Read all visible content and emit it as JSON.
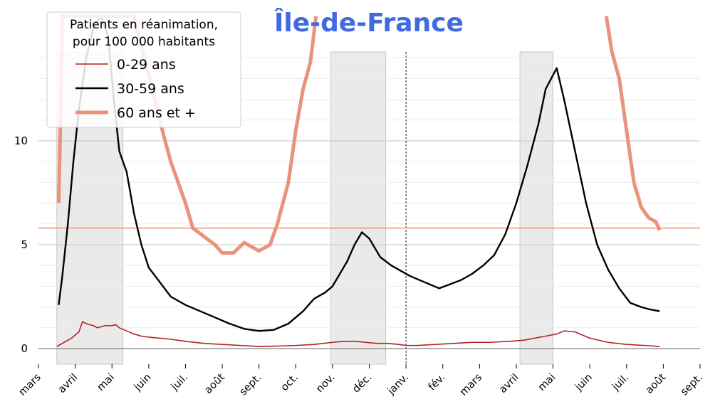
{
  "chart_data": {
    "type": "line",
    "title": "Île-de-France",
    "title_color": "#4169e1",
    "legend": {
      "title": [
        "Patients en réanimation,",
        "pour 100 000 habitants"
      ],
      "placement": "top-left"
    },
    "xlabel": "",
    "ylabel": "",
    "x_unit": "months since 1 March 2020",
    "xlim": [
      0,
      18
    ],
    "ylim": [
      -0.8,
      15
    ],
    "yticks": [
      0,
      5,
      10
    ],
    "x_tick_labels": [
      "mars",
      "avril",
      "mai",
      "juin",
      "juil.",
      "août",
      "sept.",
      "oct.",
      "nov.",
      "déc.",
      "janv.",
      "fév.",
      "mars",
      "avril",
      "mai",
      "juin",
      "juil.",
      "août",
      "sept."
    ],
    "shaded_periods": [
      [
        0.5,
        2.3
      ],
      [
        7.95,
        9.45
      ],
      [
        13.1,
        14.0
      ]
    ],
    "vline_x": 10,
    "hline_y": 5.8,
    "colors": {
      "hline": "#e8937a",
      "shade": "#d9d9d9",
      "vline": "#000000",
      "axis": "#808080"
    },
    "series": [
      {
        "name": "0-29 ans",
        "color": "#b22222",
        "x": [
          0.5,
          0.7,
          0.9,
          1.1,
          1.2,
          1.3,
          1.5,
          1.6,
          1.8,
          2.0,
          2.1,
          2.2,
          2.4,
          2.6,
          2.8,
          3.0,
          3.3,
          3.6,
          4.0,
          4.5,
          5.0,
          5.5,
          6.0,
          6.5,
          7.0,
          7.5,
          8.0,
          8.3,
          8.6,
          8.9,
          9.2,
          9.5,
          9.8,
          10.0,
          10.3,
          10.8,
          11.3,
          11.8,
          12.3,
          12.8,
          13.2,
          13.5,
          13.8,
          14.1,
          14.3,
          14.6,
          15.0,
          15.5,
          16.0,
          16.5,
          16.9
        ],
        "values": [
          0.1,
          0.3,
          0.5,
          0.8,
          1.3,
          1.2,
          1.1,
          1.0,
          1.1,
          1.1,
          1.15,
          1.0,
          0.85,
          0.7,
          0.6,
          0.55,
          0.5,
          0.45,
          0.35,
          0.25,
          0.2,
          0.15,
          0.1,
          0.12,
          0.15,
          0.2,
          0.3,
          0.35,
          0.35,
          0.3,
          0.25,
          0.25,
          0.2,
          0.15,
          0.15,
          0.2,
          0.25,
          0.3,
          0.3,
          0.35,
          0.4,
          0.5,
          0.6,
          0.7,
          0.85,
          0.8,
          0.5,
          0.3,
          0.2,
          0.15,
          0.1
        ]
      },
      {
        "name": "30-59 ans",
        "color": "#000000",
        "x": [
          0.55,
          0.65,
          0.8,
          0.95,
          1.1,
          1.3,
          1.5,
          1.7,
          1.9,
          2.05,
          2.2,
          2.4,
          2.6,
          2.8,
          3.0,
          3.3,
          3.6,
          4.0,
          4.4,
          4.8,
          5.2,
          5.6,
          6.0,
          6.4,
          6.8,
          7.2,
          7.5,
          7.8,
          8.0,
          8.2,
          8.4,
          8.6,
          8.8,
          9.0,
          9.3,
          9.6,
          9.9,
          10.1,
          10.5,
          10.9,
          11.2,
          11.5,
          11.8,
          12.1,
          12.4,
          12.7,
          13.0,
          13.3,
          13.6,
          13.8,
          13.95,
          14.1,
          14.3,
          14.6,
          14.9,
          15.2,
          15.5,
          15.8,
          16.1,
          16.4,
          16.6,
          16.9
        ],
        "values": [
          2.1,
          3.5,
          6.0,
          9.0,
          11.5,
          14.0,
          15.5,
          16.0,
          15.0,
          12.0,
          9.5,
          8.5,
          6.5,
          5.0,
          3.9,
          3.2,
          2.5,
          2.1,
          1.8,
          1.5,
          1.2,
          0.95,
          0.85,
          0.9,
          1.2,
          1.8,
          2.4,
          2.7,
          3.0,
          3.6,
          4.2,
          5.0,
          5.6,
          5.3,
          4.4,
          4.0,
          3.7,
          3.5,
          3.2,
          2.9,
          3.1,
          3.3,
          3.6,
          4.0,
          4.5,
          5.5,
          7.0,
          8.8,
          10.8,
          12.5,
          13.0,
          13.5,
          12.0,
          9.5,
          7.0,
          5.0,
          3.8,
          2.9,
          2.2,
          2.0,
          1.9,
          1.8
        ]
      },
      {
        "name": "60 ans et +",
        "color": "#e8937a",
        "x": [
          0.55,
          0.6,
          0.65,
          2.6,
          2.8,
          3.0,
          3.2,
          3.4,
          3.6,
          3.8,
          4.0,
          4.2,
          4.5,
          4.8,
          5.0,
          5.3,
          5.6,
          6.0,
          6.3,
          6.5,
          6.8,
          7.0,
          7.2,
          7.4,
          7.55,
          15.45,
          15.6,
          15.8,
          16.0,
          16.2,
          16.4,
          16.6,
          16.8,
          16.9
        ],
        "values": [
          7.0,
          11.0,
          16.0,
          16.0,
          14.5,
          13.2,
          11.8,
          10.3,
          9.0,
          8.0,
          7.0,
          5.8,
          5.4,
          5.0,
          4.6,
          4.6,
          5.1,
          4.7,
          5.0,
          6.0,
          8.0,
          10.5,
          12.5,
          13.8,
          16.0,
          16.0,
          14.3,
          13.0,
          10.5,
          8.0,
          6.8,
          6.3,
          6.1,
          5.7
        ]
      }
    ]
  }
}
